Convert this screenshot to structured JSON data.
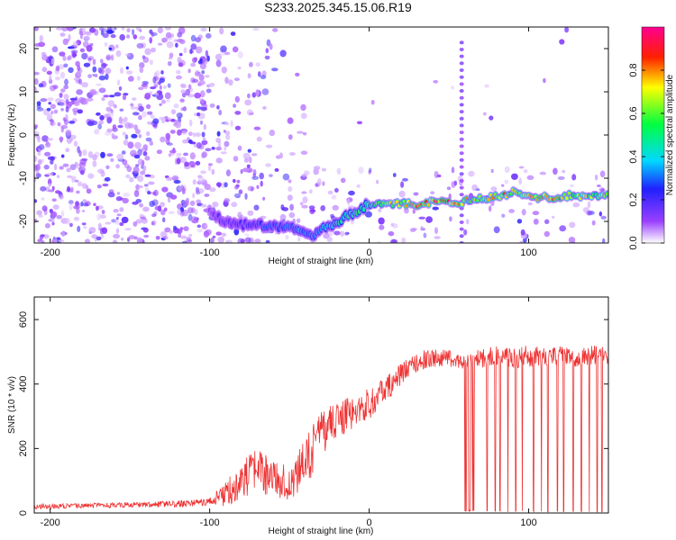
{
  "title": "S233.2025.345.15.06.R19",
  "chart_data": [
    {
      "type": "heatmap",
      "name": "spectrogram",
      "xlabel": "Height of straight line (km)",
      "ylabel": "Frequency (Hz)",
      "xlim": [
        -210,
        150
      ],
      "ylim": [
        -25,
        25
      ],
      "xticks": [
        -200,
        -100,
        0,
        100
      ],
      "yticks": [
        -20,
        -10,
        0,
        10,
        20
      ],
      "colorbar": {
        "label": "Normalized spectral amplitude",
        "range": [
          0,
          1
        ],
        "ticks": [
          0.0,
          0.2,
          0.4,
          0.6,
          0.8
        ],
        "tick_labels": [
          "0.0",
          "0.2",
          "0.4",
          "0.6",
          "0.8"
        ],
        "colormap": [
          "#ffffff",
          "#7a00ff",
          "#0000ff",
          "#00ffff",
          "#00ff00",
          "#ffff00",
          "#ff0000",
          "#ff00a0"
        ]
      },
      "ridge": {
        "x": [
          -100,
          -90,
          -75,
          -60,
          -45,
          -35,
          -25,
          -15,
          -5,
          0,
          10,
          20,
          30,
          40,
          50,
          58,
          65,
          75,
          85,
          90,
          95,
          105,
          115,
          125,
          135,
          150
        ],
        "freq": [
          -18,
          -20,
          -21,
          -21,
          -22,
          -23,
          -21,
          -19,
          -17,
          -16,
          -16,
          -16,
          -16,
          -15.5,
          -15.5,
          -15.5,
          -15,
          -14.5,
          -14,
          -13,
          -14,
          -14.5,
          -14.5,
          -14,
          -14,
          -14
        ],
        "amplitude": [
          0.15,
          0.2,
          0.25,
          0.3,
          0.35,
          0.35,
          0.45,
          0.5,
          0.55,
          0.6,
          0.7,
          0.8,
          0.85,
          0.85,
          0.9,
          0.8,
          0.75,
          0.8,
          0.85,
          0.7,
          0.75,
          0.85,
          0.9,
          0.75,
          0.7,
          0.7
        ]
      },
      "vertical_line": {
        "x": 58,
        "freq_range": [
          -25,
          23
        ]
      }
    },
    {
      "type": "line",
      "name": "snr",
      "xlabel": "Height of straight line (km)",
      "ylabel": "SNR (10 * v/v)",
      "xlim": [
        -210,
        150
      ],
      "ylim": [
        0,
        670
      ],
      "xticks": [
        -200,
        -100,
        0,
        100
      ],
      "yticks": [
        0,
        200,
        400,
        600
      ],
      "color": "#ee3333",
      "x": [
        -210,
        -180,
        -150,
        -120,
        -100,
        -90,
        -80,
        -70,
        -60,
        -50,
        -40,
        -30,
        -20,
        -10,
        0,
        10,
        20,
        30,
        40,
        50,
        55,
        60,
        65,
        70,
        80,
        90,
        100,
        110,
        120,
        130,
        140,
        150
      ],
      "values": [
        20,
        22,
        25,
        28,
        35,
        60,
        100,
        130,
        110,
        90,
        150,
        250,
        290,
        310,
        340,
        380,
        430,
        470,
        480,
        480,
        470,
        470,
        475,
        480,
        490,
        480,
        490,
        480,
        490,
        480,
        490,
        485
      ],
      "noise": [
        8,
        8,
        8,
        10,
        12,
        40,
        60,
        70,
        60,
        50,
        80,
        70,
        60,
        50,
        50,
        40,
        35,
        30,
        30,
        25,
        25,
        25,
        25,
        30,
        30,
        30,
        40,
        30,
        30,
        30,
        30,
        30
      ],
      "dropouts": [
        62,
        63,
        64,
        65,
        74,
        79,
        82,
        87,
        92,
        96,
        103,
        108,
        112,
        118,
        122,
        128,
        133,
        138,
        143,
        146
      ]
    }
  ]
}
